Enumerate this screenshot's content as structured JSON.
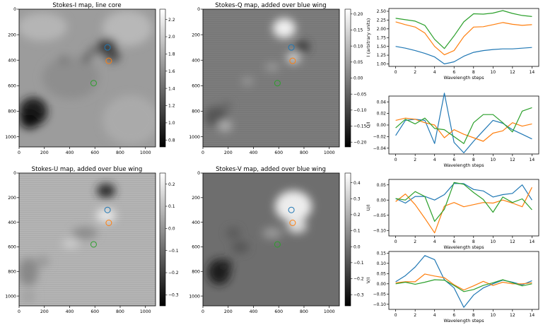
{
  "figure": {
    "maps": [
      {
        "title": "Stokes-I map, line core",
        "map": "I",
        "xticks": [
          "0",
          "200",
          "400",
          "600",
          "800",
          "1000"
        ],
        "yticks": [
          "0",
          "200",
          "400",
          "600",
          "800",
          "1000"
        ],
        "cbar_ticks": [
          "2.2",
          "2.0",
          "1.8",
          "1.6",
          "1.4",
          "1.2",
          "1.0",
          "0.8"
        ]
      },
      {
        "title": "Stokes-Q map, added over blue wing",
        "map": "Q",
        "xticks": [
          "0",
          "200",
          "400",
          "600",
          "800",
          "1000"
        ],
        "yticks": [
          "0",
          "200",
          "400",
          "600",
          "800",
          "1000"
        ],
        "cbar_ticks": [
          "0.20",
          "0.15",
          "0.10",
          "0.05",
          "0.00",
          "−0.05",
          "−0.10",
          "−0.15",
          "−0.20"
        ]
      },
      {
        "title": "Stokes-U map, added over blue wing",
        "map": "U",
        "xticks": [
          "0",
          "200",
          "400",
          "600",
          "800",
          "1000"
        ],
        "yticks": [
          "0",
          "200",
          "400",
          "600",
          "800",
          "1000"
        ],
        "cbar_ticks": [
          "0.2",
          "0.1",
          "0.0",
          "−0.1",
          "−0.2",
          "−0.3"
        ]
      },
      {
        "title": "Stokes-V map, added over blue wing",
        "map": "V",
        "xticks": [
          "0",
          "200",
          "400",
          "600",
          "800",
          "1000"
        ],
        "yticks": [
          "0",
          "200",
          "400",
          "600",
          "800",
          "1000"
        ],
        "cbar_ticks": [
          "0.4",
          "0.3",
          "0.2",
          "0.1",
          "0.0",
          "−0.1",
          "−0.2",
          "−0.3"
        ]
      }
    ]
  },
  "chart_data": [
    {
      "type": "heatmap",
      "title": "Stokes-I map, line core",
      "xlim": [
        0,
        1080
      ],
      "ylim": [
        1080,
        0
      ],
      "colormap": "gray",
      "colorbar_range": [
        0.72,
        2.32
      ],
      "markers": [
        {
          "x": 700,
          "y": 300,
          "color": "#1f77b4"
        },
        {
          "x": 710,
          "y": 405,
          "color": "#ff7f0e"
        },
        {
          "x": 590,
          "y": 580,
          "color": "#2ca02c"
        }
      ]
    },
    {
      "type": "heatmap",
      "title": "Stokes-Q map, added over blue wing",
      "xlim": [
        0,
        1080
      ],
      "ylim": [
        1080,
        0
      ],
      "colormap": "gray",
      "colorbar_range": [
        -0.215,
        0.215
      ],
      "markers": [
        {
          "x": 700,
          "y": 300,
          "color": "#1f77b4"
        },
        {
          "x": 710,
          "y": 405,
          "color": "#ff7f0e"
        },
        {
          "x": 590,
          "y": 580,
          "color": "#2ca02c"
        }
      ]
    },
    {
      "type": "heatmap",
      "title": "Stokes-U map, added over blue wing",
      "xlim": [
        0,
        1080
      ],
      "ylim": [
        1080,
        0
      ],
      "colormap": "gray",
      "colorbar_range": [
        -0.35,
        0.25
      ],
      "markers": [
        {
          "x": 700,
          "y": 300,
          "color": "#1f77b4"
        },
        {
          "x": 710,
          "y": 405,
          "color": "#ff7f0e"
        },
        {
          "x": 590,
          "y": 580,
          "color": "#2ca02c"
        }
      ]
    },
    {
      "type": "heatmap",
      "title": "Stokes-V map, added over blue wing",
      "xlim": [
        0,
        1080
      ],
      "ylim": [
        1080,
        0
      ],
      "colormap": "gray",
      "colorbar_range": [
        -0.37,
        0.46
      ],
      "markers": [
        {
          "x": 700,
          "y": 300,
          "color": "#1f77b4"
        },
        {
          "x": 710,
          "y": 405,
          "color": "#ff7f0e"
        },
        {
          "x": 590,
          "y": 580,
          "color": "#2ca02c"
        }
      ]
    },
    {
      "type": "line",
      "xlabel": "Wavelength steps",
      "ylabel": "I (arbitrary units)",
      "x": [
        0,
        1,
        2,
        3,
        4,
        5,
        6,
        7,
        8,
        9,
        10,
        11,
        12,
        13,
        14
      ],
      "ylim": [
        0.93,
        2.58
      ],
      "xticks": [
        "0",
        "2",
        "4",
        "6",
        "8",
        "10",
        "12",
        "14"
      ],
      "yticks": [
        "1.00",
        "1.25",
        "1.50",
        "1.75",
        "2.00",
        "2.25",
        "2.50"
      ],
      "series": [
        {
          "color": "#1f77b4",
          "values": [
            1.5,
            1.45,
            1.38,
            1.3,
            1.2,
            1.0,
            1.06,
            1.22,
            1.33,
            1.38,
            1.41,
            1.43,
            1.43,
            1.45,
            1.47
          ]
        },
        {
          "color": "#ff7f0e",
          "values": [
            2.2,
            2.12,
            2.05,
            1.88,
            1.5,
            1.26,
            1.38,
            1.78,
            2.05,
            2.06,
            2.12,
            2.18,
            2.13,
            2.1,
            2.12
          ]
        },
        {
          "color": "#2ca02c",
          "values": [
            2.3,
            2.26,
            2.22,
            2.1,
            1.7,
            1.44,
            1.8,
            2.2,
            2.43,
            2.42,
            2.45,
            2.52,
            2.44,
            2.38,
            2.35
          ]
        }
      ]
    },
    {
      "type": "line",
      "xlabel": "Wavelength steps",
      "ylabel": "Q/I",
      "x": [
        0,
        1,
        2,
        3,
        4,
        5,
        6,
        7,
        8,
        9,
        10,
        11,
        12,
        13,
        14
      ],
      "ylim": [
        -0.05,
        0.05
      ],
      "xticks": [
        "0",
        "2",
        "4",
        "6",
        "8",
        "10",
        "12",
        "14"
      ],
      "yticks": [
        "0.04",
        "0.02",
        "0.00",
        "−0.02",
        "−0.04"
      ],
      "series": [
        {
          "color": "#1f77b4",
          "values": [
            -0.018,
            0.008,
            0.01,
            0.008,
            -0.032,
            0.055,
            -0.03,
            -0.048,
            -0.028,
            -0.01,
            0.008,
            0.003,
            -0.008,
            -0.016,
            -0.024
          ]
        },
        {
          "color": "#ff7f0e",
          "values": [
            0.008,
            0.012,
            0.01,
            0.004,
            0.0,
            -0.022,
            -0.008,
            -0.016,
            -0.022,
            -0.028,
            -0.014,
            -0.01,
            0.004,
            -0.002,
            0.002
          ]
        },
        {
          "color": "#2ca02c",
          "values": [
            -0.005,
            0.01,
            0.002,
            0.012,
            -0.006,
            -0.008,
            -0.02,
            -0.032,
            0.004,
            0.018,
            0.018,
            0.004,
            -0.012,
            0.024,
            0.03
          ]
        }
      ]
    },
    {
      "type": "line",
      "xlabel": "Wavelength steps",
      "ylabel": "U/I",
      "x": [
        0,
        1,
        2,
        3,
        4,
        5,
        6,
        7,
        8,
        9,
        10,
        11,
        12,
        13,
        14
      ],
      "ylim": [
        -0.118,
        0.068
      ],
      "xticks": [
        "0",
        "2",
        "4",
        "6",
        "8",
        "10",
        "12",
        "14"
      ],
      "yticks": [
        "0.05",
        "0.00",
        "−0.05",
        "−0.10"
      ],
      "series": [
        {
          "color": "#1f77b4",
          "values": [
            0.005,
            -0.01,
            0.012,
            0.012,
            0.0,
            0.018,
            0.055,
            0.054,
            0.035,
            0.03,
            0.01,
            0.018,
            0.022,
            0.05,
            0.0
          ]
        },
        {
          "color": "#ff7f0e",
          "values": [
            -0.005,
            0.02,
            -0.015,
            -0.06,
            -0.108,
            -0.02,
            -0.008,
            -0.022,
            -0.015,
            -0.008,
            -0.01,
            0.0,
            -0.01,
            -0.022,
            0.042
          ]
        },
        {
          "color": "#2ca02c",
          "values": [
            0.005,
            0.0,
            0.028,
            0.012,
            -0.07,
            -0.03,
            0.058,
            0.052,
            0.025,
            0.002,
            -0.04,
            0.01,
            -0.008,
            0.004,
            -0.032
          ]
        }
      ]
    },
    {
      "type": "line",
      "xlabel": "Wavelength steps",
      "ylabel": "V/I",
      "x": [
        0,
        1,
        2,
        3,
        4,
        5,
        6,
        7,
        8,
        9,
        10,
        11,
        12,
        13,
        14
      ],
      "ylim": [
        -0.125,
        0.158
      ],
      "xticks": [
        "0",
        "2",
        "4",
        "6",
        "8",
        "10",
        "12",
        "14"
      ],
      "yticks": [
        "0.15",
        "0.10",
        "0.05",
        "0.00",
        "−0.05",
        "−0.10"
      ],
      "series": [
        {
          "color": "#1f77b4",
          "values": [
            0.01,
            0.04,
            0.082,
            0.138,
            0.118,
            0.02,
            -0.02,
            -0.115,
            -0.055,
            -0.02,
            0.0,
            0.018,
            0.008,
            -0.005,
            0.015
          ]
        },
        {
          "color": "#ff7f0e",
          "values": [
            0.005,
            0.01,
            0.01,
            0.048,
            0.038,
            0.03,
            -0.005,
            -0.03,
            -0.01,
            0.012,
            -0.008,
            0.008,
            0.0,
            0.0,
            0.005
          ]
        },
        {
          "color": "#2ca02c",
          "values": [
            0.0,
            0.008,
            -0.002,
            0.008,
            0.02,
            0.018,
            -0.008,
            -0.038,
            -0.028,
            -0.008,
            0.005,
            0.02,
            0.005,
            -0.01,
            0.0
          ]
        }
      ]
    }
  ]
}
